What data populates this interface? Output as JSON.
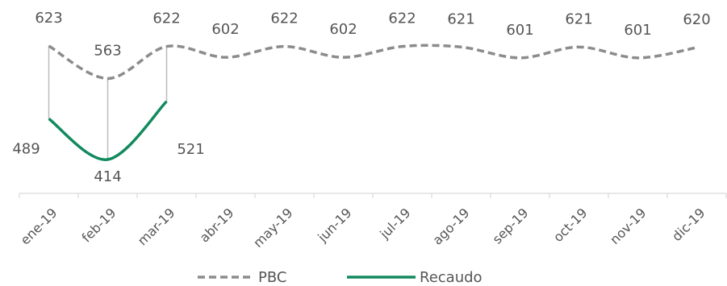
{
  "chart_data": {
    "type": "line",
    "categories": [
      "ene-19",
      "feb-19",
      "mar-19",
      "abr-19",
      "may-19",
      "jun-19",
      "jul-19",
      "ago-19",
      "sep-19",
      "oct-19",
      "nov-19",
      "dic-19"
    ],
    "series": [
      {
        "name": "PBC",
        "color": "#8c8c8c",
        "dashed": true,
        "values": [
          623,
          563,
          622,
          602,
          622,
          602,
          622,
          621,
          601,
          621,
          601,
          620
        ]
      },
      {
        "name": "Recaudo",
        "color": "#128a5e",
        "dashed": false,
        "values": [
          489,
          414,
          521,
          null,
          null,
          null,
          null,
          null,
          null,
          null,
          null,
          null
        ]
      }
    ],
    "legend": "bottom"
  }
}
